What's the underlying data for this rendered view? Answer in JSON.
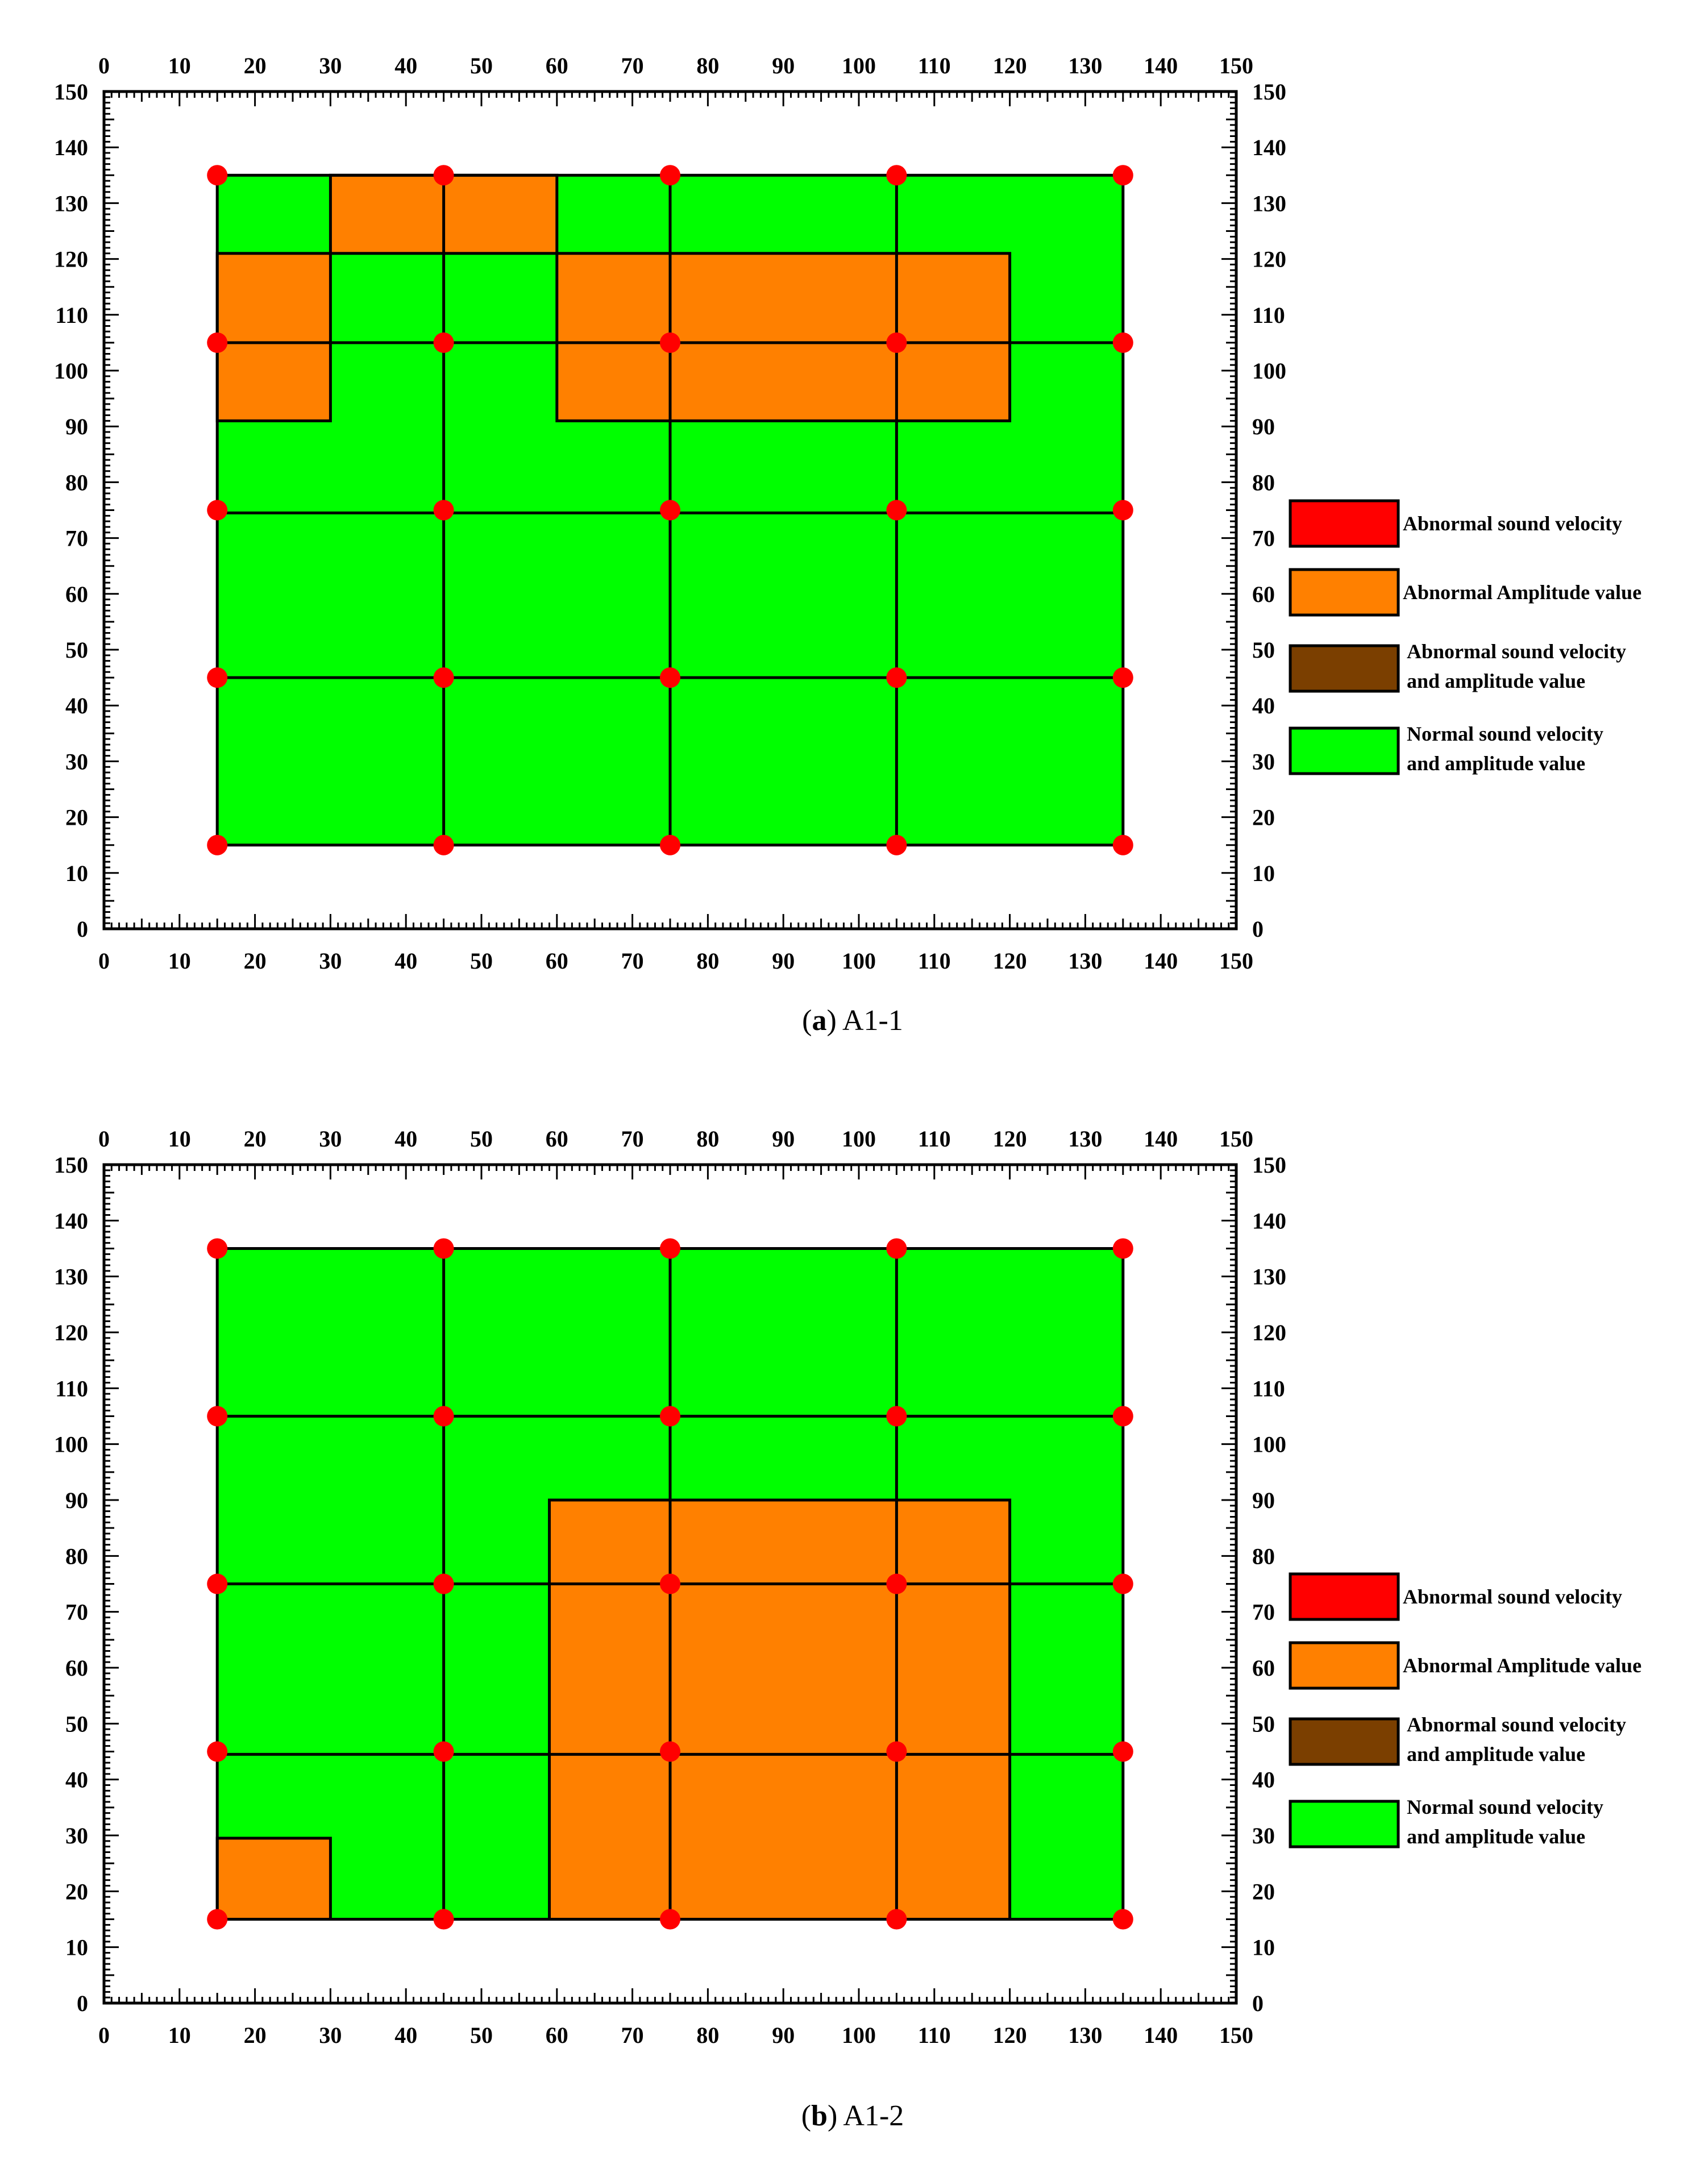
{
  "colors": {
    "green": "#00ff00",
    "orange": "#ff8000",
    "red": "#ff0000",
    "brown": "#7b3f00",
    "black": "#000000"
  },
  "legend": [
    {
      "key": "abnormal_velocity",
      "color": "#ff0000",
      "lines": [
        "Abnormal sound velocity"
      ]
    },
    {
      "key": "abnormal_amplitude",
      "color": "#ff8000",
      "lines": [
        "Abnormal Amplitude  value"
      ]
    },
    {
      "key": "abnormal_both",
      "color": "#7b3f00",
      "lines": [
        "Abnormal sound velocity",
        "and amplitude value"
      ]
    },
    {
      "key": "normal",
      "color": "#00ff00",
      "lines": [
        "Normal sound velocity",
        "and amplitude value"
      ]
    }
  ],
  "chart_data": [
    {
      "type": "heatmap",
      "caption_letter": "a",
      "caption_text": "A1-1",
      "xlim": [
        0,
        150
      ],
      "ylim": [
        0,
        150
      ],
      "ticks": [
        0,
        10,
        20,
        30,
        40,
        50,
        60,
        70,
        80,
        90,
        100,
        110,
        120,
        130,
        140,
        150
      ],
      "region": {
        "x": [
          15,
          135
        ],
        "y": [
          15,
          135
        ],
        "fill": "green"
      },
      "grid_x": [
        45,
        75,
        105
      ],
      "grid_y": [
        45,
        74.5,
        105
      ],
      "orange_zones": [
        {
          "x": [
            30,
            60
          ],
          "y": [
            121,
            135
          ]
        },
        {
          "x": [
            15,
            30
          ],
          "y": [
            91,
            121
          ]
        },
        {
          "x": [
            60,
            120
          ],
          "y": [
            91,
            121
          ]
        }
      ],
      "points_x": [
        15,
        45,
        75,
        105,
        135
      ],
      "points_y": [
        15,
        45,
        75,
        105,
        135
      ]
    },
    {
      "type": "heatmap",
      "caption_letter": "b",
      "caption_text": "A1-2",
      "xlim": [
        0,
        150
      ],
      "ylim": [
        0,
        150
      ],
      "ticks": [
        0,
        10,
        20,
        30,
        40,
        50,
        60,
        70,
        80,
        90,
        100,
        110,
        120,
        130,
        140,
        150
      ],
      "region": {
        "x": [
          15,
          135
        ],
        "y": [
          15,
          135
        ],
        "fill": "green"
      },
      "grid_x": [
        45,
        75,
        105
      ],
      "grid_y": [
        44.5,
        75,
        105
      ],
      "orange_zones": [
        {
          "x": [
            59,
            120
          ],
          "y": [
            15,
            90
          ]
        },
        {
          "x": [
            15,
            30
          ],
          "y": [
            15,
            29.5
          ]
        }
      ],
      "points_x": [
        15,
        45,
        75,
        105,
        135
      ],
      "points_y": [
        15,
        45,
        75,
        105,
        135
      ]
    }
  ]
}
